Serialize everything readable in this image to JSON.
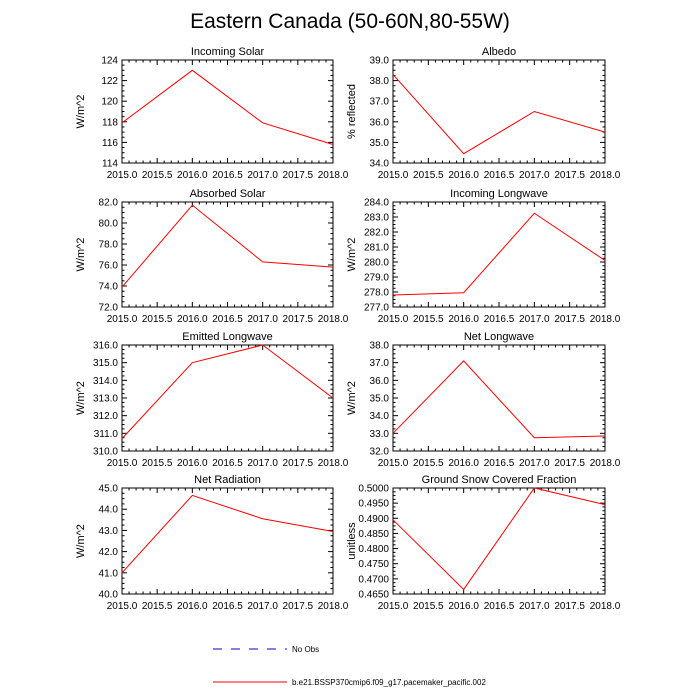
{
  "title": "Eastern Canada (50-60N,80-55W)",
  "colors": {
    "series": "#ff0000",
    "obs": "#0000cc",
    "axis": "#000000"
  },
  "legend": {
    "obs_label": "No Obs",
    "series_label": "b.e21.BSSP370cmip6.f09_g17.pacemaker_pacific.002"
  },
  "chart_data": [
    {
      "type": "line",
      "title": "Incoming Solar",
      "ylabel": "W/m^2",
      "x": [
        2015.0,
        2016.0,
        2017.0,
        2018.0
      ],
      "values": [
        117.9,
        123.0,
        117.9,
        115.8
      ],
      "xlim": [
        2015.0,
        2018.0
      ],
      "ylim": [
        114,
        124
      ],
      "xticks": [
        "2015.0",
        "2015.5",
        "2016.0",
        "2016.5",
        "2017.0",
        "2017.5",
        "2018.0"
      ],
      "yticks": [
        114,
        116,
        118,
        120,
        122,
        124
      ],
      "ytick_labels": [
        "114",
        "116",
        "118",
        "120",
        "122",
        "124"
      ]
    },
    {
      "type": "line",
      "title": "Albedo",
      "ylabel": "% reflected",
      "x": [
        2015.0,
        2016.0,
        2017.0,
        2018.0
      ],
      "values": [
        38.3,
        34.45,
        36.5,
        35.5
      ],
      "xlim": [
        2015.0,
        2018.0
      ],
      "ylim": [
        34.0,
        39.0
      ],
      "xticks": [
        "2015.0",
        "2015.5",
        "2016.0",
        "2016.5",
        "2017.0",
        "2017.5",
        "2018.0"
      ],
      "yticks": [
        34,
        35,
        36,
        37,
        38,
        39
      ],
      "ytick_labels": [
        "34.0",
        "35.0",
        "36.0",
        "37.0",
        "38.0",
        "39.0"
      ]
    },
    {
      "type": "line",
      "title": "Absorbed Solar",
      "ylabel": "W/m^2",
      "x": [
        2015.0,
        2016.0,
        2017.0,
        2018.0
      ],
      "values": [
        73.9,
        81.7,
        76.3,
        75.8
      ],
      "xlim": [
        2015.0,
        2018.0
      ],
      "ylim": [
        72.0,
        82.0
      ],
      "xticks": [
        "2015.0",
        "2015.5",
        "2016.0",
        "2016.5",
        "2017.0",
        "2017.5",
        "2018.0"
      ],
      "yticks": [
        72,
        74,
        76,
        78,
        80,
        82
      ],
      "ytick_labels": [
        "72.0",
        "74.0",
        "76.0",
        "78.0",
        "80.0",
        "82.0"
      ]
    },
    {
      "type": "line",
      "title": "Incoming Longwave",
      "ylabel": "W/m^2",
      "x": [
        2015.0,
        2016.0,
        2017.0,
        2018.0
      ],
      "values": [
        277.8,
        277.95,
        283.25,
        280.1
      ],
      "xlim": [
        2015.0,
        2018.0
      ],
      "ylim": [
        277.0,
        284.0
      ],
      "xticks": [
        "2015.0",
        "2015.5",
        "2016.0",
        "2016.5",
        "2017.0",
        "2017.5",
        "2018.0"
      ],
      "yticks": [
        277,
        278,
        279,
        280,
        281,
        282,
        283,
        284
      ],
      "ytick_labels": [
        "277.0",
        "278.0",
        "279.0",
        "280.0",
        "281.0",
        "282.0",
        "283.0",
        "284.0"
      ]
    },
    {
      "type": "line",
      "title": "Emitted Longwave",
      "ylabel": "W/m^2",
      "x": [
        2015.0,
        2016.0,
        2017.0,
        2018.0
      ],
      "values": [
        310.7,
        315.0,
        316.0,
        313.0
      ],
      "xlim": [
        2015.0,
        2018.0
      ],
      "ylim": [
        310.0,
        316.0
      ],
      "xticks": [
        "2015.0",
        "2015.5",
        "2016.0",
        "2016.5",
        "2017.0",
        "2017.5",
        "2018.0"
      ],
      "yticks": [
        310,
        311,
        312,
        313,
        314,
        315,
        316
      ],
      "ytick_labels": [
        "310.0",
        "311.0",
        "312.0",
        "313.0",
        "314.0",
        "315.0",
        "316.0"
      ]
    },
    {
      "type": "line",
      "title": "Net Longwave",
      "ylabel": "W/m^2",
      "x": [
        2015.0,
        2016.0,
        2017.0,
        2018.0
      ],
      "values": [
        33.0,
        37.1,
        32.75,
        32.85
      ],
      "xlim": [
        2015.0,
        2018.0
      ],
      "ylim": [
        32.0,
        38.0
      ],
      "xticks": [
        "2015.0",
        "2015.5",
        "2016.0",
        "2016.5",
        "2017.0",
        "2017.5",
        "2018.0"
      ],
      "yticks": [
        32,
        33,
        34,
        35,
        36,
        37,
        38
      ],
      "ytick_labels": [
        "32.0",
        "33.0",
        "34.0",
        "35.0",
        "36.0",
        "37.0",
        "38.0"
      ]
    },
    {
      "type": "line",
      "title": "Net Radiation",
      "ylabel": "W/m^2",
      "x": [
        2015.0,
        2016.0,
        2017.0,
        2018.0
      ],
      "values": [
        41.0,
        44.65,
        43.55,
        42.95
      ],
      "xlim": [
        2015.0,
        2018.0
      ],
      "ylim": [
        40.0,
        45.0
      ],
      "xticks": [
        "2015.0",
        "2015.5",
        "2016.0",
        "2016.5",
        "2017.0",
        "2017.5",
        "2018.0"
      ],
      "yticks": [
        40,
        41,
        42,
        43,
        44,
        45
      ],
      "ytick_labels": [
        "40.0",
        "41.0",
        "42.0",
        "43.0",
        "44.0",
        "45.0"
      ]
    },
    {
      "type": "line",
      "title": "Ground Snow Covered Fraction",
      "ylabel": "unitless",
      "x": [
        2015.0,
        2016.0,
        2017.0,
        2018.0
      ],
      "values": [
        0.4895,
        0.4665,
        0.5,
        0.4945
      ],
      "xlim": [
        2015.0,
        2018.0
      ],
      "ylim": [
        0.465,
        0.5
      ],
      "xticks": [
        "2015.0",
        "2015.5",
        "2016.0",
        "2016.5",
        "2017.0",
        "2017.5",
        "2018.0"
      ],
      "yticks": [
        0.465,
        0.47,
        0.475,
        0.48,
        0.485,
        0.49,
        0.495,
        0.5
      ],
      "ytick_labels": [
        "0.4650",
        "0.4700",
        "0.4750",
        "0.4800",
        "0.4850",
        "0.4900",
        "0.4950",
        "0.5000"
      ]
    }
  ]
}
